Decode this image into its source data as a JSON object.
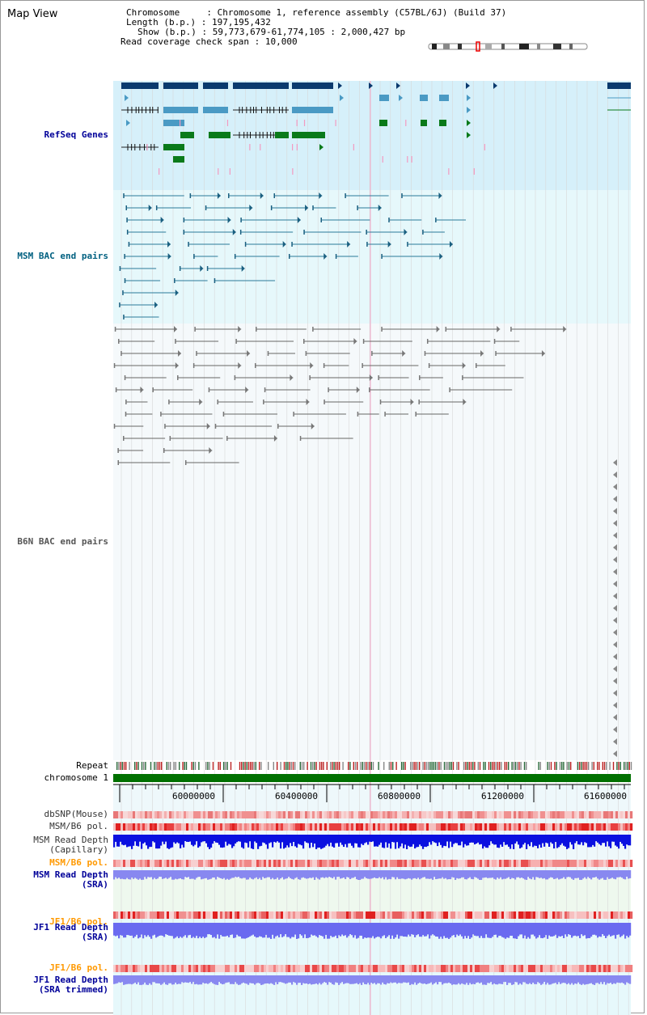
{
  "title": "Map View",
  "info": {
    "chromosome_key": "Chromosome",
    "chromosome_val": "Chromosome 1, reference assembly (C57BL/6J) (Build 37)",
    "length_key": "Length (b.p.)",
    "length_val": "197,195,432",
    "show_key": "Show (b.p.)",
    "show_val": "59,773,679-61,774,105 : 2,000,427 bp",
    "coverage_key": "Read coverage check span",
    "coverage_val": "10,000"
  },
  "tracks": {
    "refseq": "RefSeq Genes",
    "msm_bac": "MSM BAC end pairs",
    "b6n_bac": "B6N BAC end pairs",
    "repeat": "Repeat",
    "chromosome": "chromosome 1",
    "dbsnp": "dbSNP(Mouse)",
    "msm_b6_pol": "MSM/B6 pol.",
    "msm_depth_cap_1": "MSM Read Depth",
    "msm_depth_cap_2": "(Capillary)",
    "msm_b6_pol2": "MSM/B6 pol.",
    "msm_depth_sra_1": "MSM Read Depth",
    "msm_depth_sra_2": "(SRA)",
    "jf1_b6_pol": "JF1/B6 pol.",
    "jf1_depth_sra_1": "JF1 Read Depth",
    "jf1_depth_sra_2": "(SRA)",
    "jf1_b6_pol2": "JF1/B6 pol.",
    "jf1_depth_trim_1": "JF1 Read Depth",
    "jf1_depth_trim_2": "(SRA trimmed)"
  },
  "axis": {
    "ticks": [
      "60000000",
      "60400000",
      "60800000",
      "61200000",
      "61600000"
    ]
  },
  "colors": {
    "refseq_bg": "#d6f0fa",
    "msm_bg": "#e6f8fb",
    "b6n_bg": "#f4f8fa",
    "chrom_bar": "#007000",
    "label_blue": "#000099",
    "label_teal": "#006080",
    "label_orange": "#ff9900"
  }
}
